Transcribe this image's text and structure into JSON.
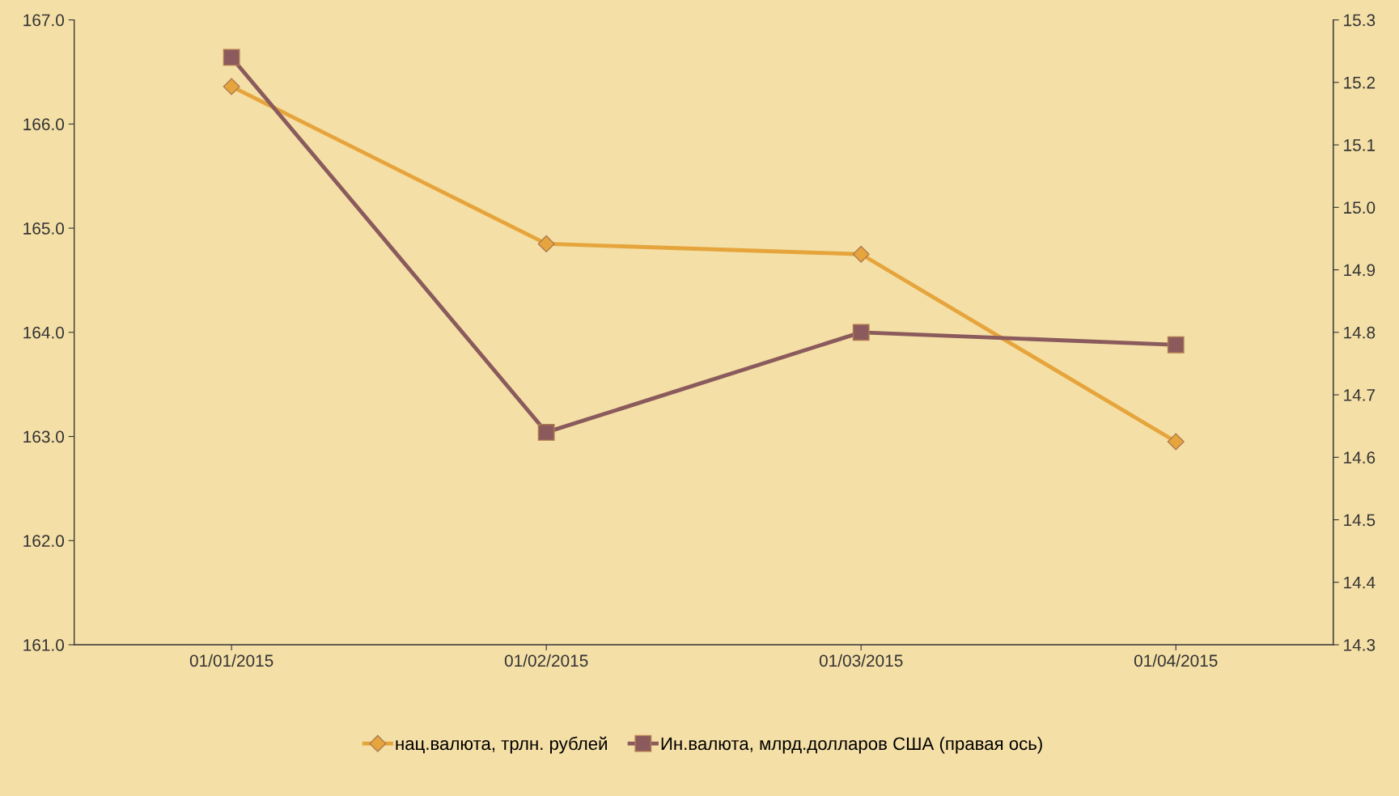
{
  "chart_data": {
    "type": "line",
    "categories": [
      "01/01/2015",
      "01/02/2015",
      "01/03/2015",
      "01/04/2015"
    ],
    "series": [
      {
        "name": "нац.валюта, трлн. рублей",
        "color": "#e6a53c",
        "values": [
          166.36,
          164.85,
          164.75,
          162.95
        ],
        "marker": "diamond"
      },
      {
        "name": "Ин.валюта, млрд.долларов США (правая ось)",
        "color": "#8a5a5c",
        "values": [
          15.24,
          14.64,
          14.8,
          14.78
        ],
        "marker": "square",
        "axis": "y2"
      }
    ],
    "ylim": [
      161,
      167
    ],
    "yticks": [
      {
        "value": 161,
        "label": "161.0"
      },
      {
        "value": 162,
        "label": "162.0"
      },
      {
        "value": 163,
        "label": "163.0"
      },
      {
        "value": 164,
        "label": "164.0"
      },
      {
        "value": 165,
        "label": "165.0"
      },
      {
        "value": 166,
        "label": "166.0"
      },
      {
        "value": 167,
        "label": "167.0"
      }
    ],
    "y2lim": [
      14.3,
      15.3
    ],
    "y2ticks": [
      {
        "value": 14.3,
        "label": "14.3"
      },
      {
        "value": 14.4,
        "label": "14.4"
      },
      {
        "value": 14.5,
        "label": "14.5"
      },
      {
        "value": 14.6,
        "label": "14.6"
      },
      {
        "value": 14.7,
        "label": "14.7"
      },
      {
        "value": 14.8,
        "label": "14.8"
      },
      {
        "value": 14.9,
        "label": "14.9"
      },
      {
        "value": 15.0,
        "label": "15.0"
      },
      {
        "value": 15.1,
        "label": "15.1"
      },
      {
        "value": 15.2,
        "label": "15.2"
      },
      {
        "value": 15.3,
        "label": "15.3"
      }
    ],
    "legend": "bottom",
    "grid": false,
    "line_style": "solid"
  }
}
